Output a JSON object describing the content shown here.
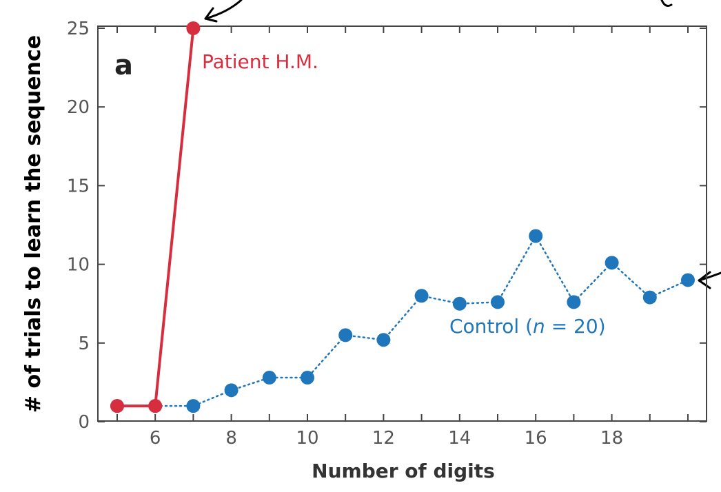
{
  "chart_data": {
    "type": "line",
    "panel_label": "a",
    "xlabel": "Number of digits",
    "ylabel": "# of trials to learn the sequence",
    "xlim": [
      4.5,
      20.5
    ],
    "ylim": [
      0,
      25
    ],
    "xticks_labeled": [
      6,
      8,
      10,
      12,
      14,
      16,
      18
    ],
    "xticks_minor": [
      5,
      7,
      9,
      11,
      13,
      15,
      17,
      19,
      20
    ],
    "yticks": [
      0,
      5,
      10,
      15,
      20,
      25
    ],
    "series": [
      {
        "name": "Patient H.M.",
        "color": "#d62e3e",
        "style": "solid",
        "x": [
          5,
          6,
          7
        ],
        "y": [
          1,
          1,
          25
        ]
      },
      {
        "name": "Control",
        "name_n": "n",
        "name_eq": " = 20)",
        "name_prefix": "Control (",
        "color": "#1f76bb",
        "style": "dotted",
        "x": [
          5,
          6,
          7,
          8,
          9,
          10,
          11,
          12,
          13,
          14,
          15,
          16,
          17,
          18,
          19,
          20
        ],
        "y": [
          1,
          1,
          1,
          2,
          2.8,
          2.8,
          5.5,
          5.2,
          8,
          7.5,
          7.6,
          11.8,
          7.6,
          10.1,
          7.9,
          9
        ]
      }
    ]
  }
}
